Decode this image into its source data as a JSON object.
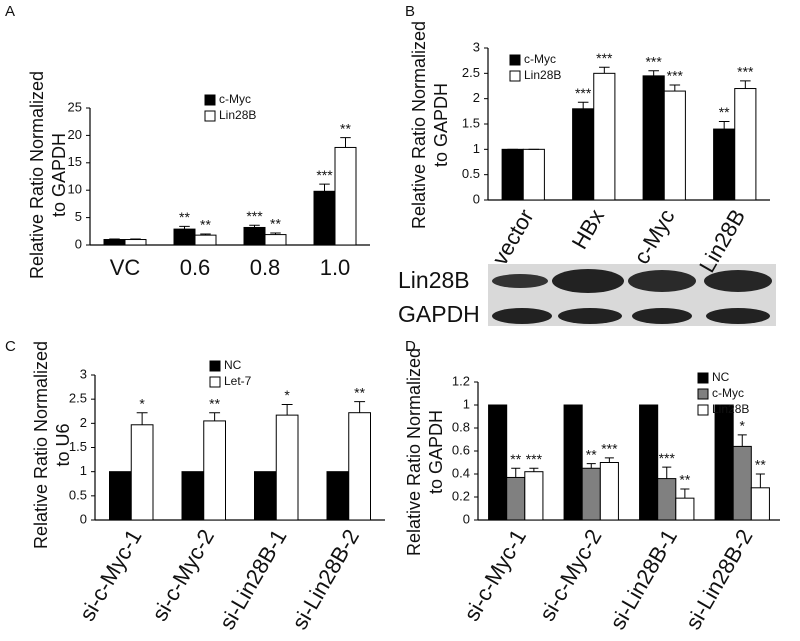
{
  "chart_data": [
    {
      "type": "bar",
      "panel": "A",
      "ylabel": [
        "Relative Ratio Normalized",
        "to GAPDH"
      ],
      "categories": [
        "VC",
        "0.6",
        "0.8",
        "1.0"
      ],
      "series": [
        {
          "name": "c-Myc",
          "color": "#000000",
          "values": [
            1,
            2.9,
            3.2,
            9.8
          ],
          "errors": [
            0.1,
            0.5,
            0.4,
            1.3
          ],
          "annotations": [
            null,
            "**",
            "***",
            "***"
          ]
        },
        {
          "name": "Lin28B",
          "color": "#ffffff",
          "values": [
            1,
            1.8,
            1.9,
            17.8
          ],
          "errors": [
            0.1,
            0.2,
            0.3,
            1.8
          ],
          "annotations": [
            null,
            "**",
            "**",
            "**"
          ]
        }
      ],
      "ylim": [
        0,
        25
      ],
      "yticks": [
        0,
        5,
        10,
        15,
        20,
        25
      ],
      "legend": "upper left"
    },
    {
      "type": "bar",
      "panel": "B",
      "ylabel": [
        "Relative Ratio Normalized",
        "to GAPDH"
      ],
      "categories": [
        "vector",
        "HBx",
        "c-Myc",
        "Lin28B"
      ],
      "series": [
        {
          "name": "c-Myc",
          "color": "#000000",
          "values": [
            1,
            1.8,
            2.45,
            1.4
          ],
          "errors": [
            0,
            0.13,
            0.1,
            0.15
          ],
          "annotations": [
            null,
            "***",
            "***",
            "**"
          ]
        },
        {
          "name": "Lin28B",
          "color": "#ffffff",
          "values": [
            1,
            2.5,
            2.15,
            2.2
          ],
          "errors": [
            0,
            0.12,
            0.12,
            0.15
          ],
          "annotations": [
            null,
            "***",
            "***",
            "***"
          ]
        }
      ],
      "ylim": [
        0,
        3
      ],
      "yticks": [
        0,
        0.5,
        1,
        1.5,
        2,
        2.5,
        3
      ],
      "legend": "upper left",
      "blot_labels": [
        "Lin28B",
        "GAPDH"
      ]
    },
    {
      "type": "bar",
      "panel": "C",
      "ylabel": [
        "Relative Ratio Normalized",
        "to U6"
      ],
      "categories": [
        "si-c-Myc-1",
        "si-c-Myc-2",
        "si-Lin28B-1",
        "si-Lin28B-2"
      ],
      "series": [
        {
          "name": "NC",
          "color": "#000000",
          "values": [
            1,
            1,
            1,
            1
          ]
        },
        {
          "name": "Let-7",
          "color": "#ffffff",
          "values": [
            1.97,
            2.05,
            2.17,
            2.22
          ],
          "errors": [
            0.25,
            0.17,
            0.22,
            0.23
          ],
          "annotations": [
            "*",
            "**",
            "*",
            "**"
          ]
        }
      ],
      "ylim": [
        0,
        3
      ],
      "yticks": [
        0,
        0.5,
        1,
        1.5,
        2,
        2.5,
        3
      ],
      "legend": "upper left"
    },
    {
      "type": "bar",
      "panel": "D",
      "ylabel": [
        "Relative Ratio Normalized",
        "to GAPDH"
      ],
      "categories": [
        "si-c-Myc-1",
        "si-c-Myc-2",
        "si-Lin28B-1",
        "si-Lin28B-2"
      ],
      "series": [
        {
          "name": "NC",
          "color": "#000000",
          "values": [
            1,
            1,
            1,
            1
          ]
        },
        {
          "name": "c-Myc",
          "color": "#808080",
          "values": [
            0.37,
            0.45,
            0.36,
            0.64
          ],
          "errors": [
            0.08,
            0.04,
            0.1,
            0.1
          ],
          "annotations": [
            "**",
            "**",
            "***",
            "*"
          ]
        },
        {
          "name": "Lin28B",
          "color": "#ffffff",
          "values": [
            0.42,
            0.5,
            0.19,
            0.28
          ],
          "errors": [
            0.03,
            0.04,
            0.08,
            0.12
          ],
          "annotations": [
            "***",
            "***",
            "**",
            "**"
          ]
        }
      ],
      "ylim": [
        0,
        1.2
      ],
      "yticks": [
        0,
        0.2,
        0.4,
        0.6,
        0.8,
        1,
        1.2
      ],
      "legend": "upper right"
    }
  ]
}
